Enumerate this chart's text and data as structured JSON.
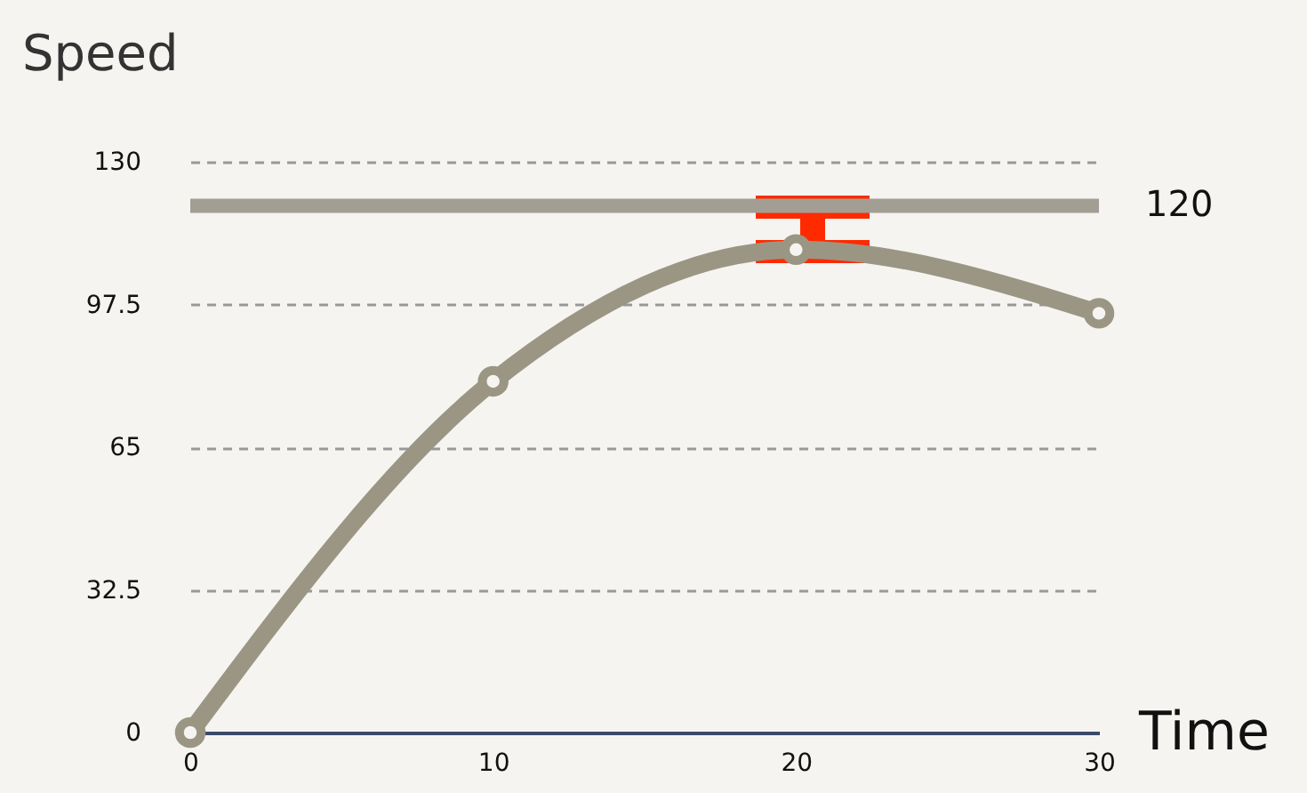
{
  "chart_data": {
    "type": "line",
    "xlabel": "Time",
    "ylabel": "Speed",
    "x": [
      0,
      10,
      20,
      30
    ],
    "series": [
      {
        "color": "#9b9684",
        "values": [
          0,
          80,
          110,
          95.5
        ]
      }
    ],
    "xlim": [
      0,
      30
    ],
    "xticks": [
      0,
      10,
      20,
      30
    ],
    "ylim": [
      0,
      130
    ],
    "yticks": [
      0,
      32.5,
      65,
      97.5,
      130
    ],
    "grid": "y",
    "marker": "circle",
    "line_style": "solid",
    "ref_lines": [
      {
        "axis": "y",
        "value": 120,
        "label": "120",
        "color": "#a39e93"
      }
    ]
  }
}
